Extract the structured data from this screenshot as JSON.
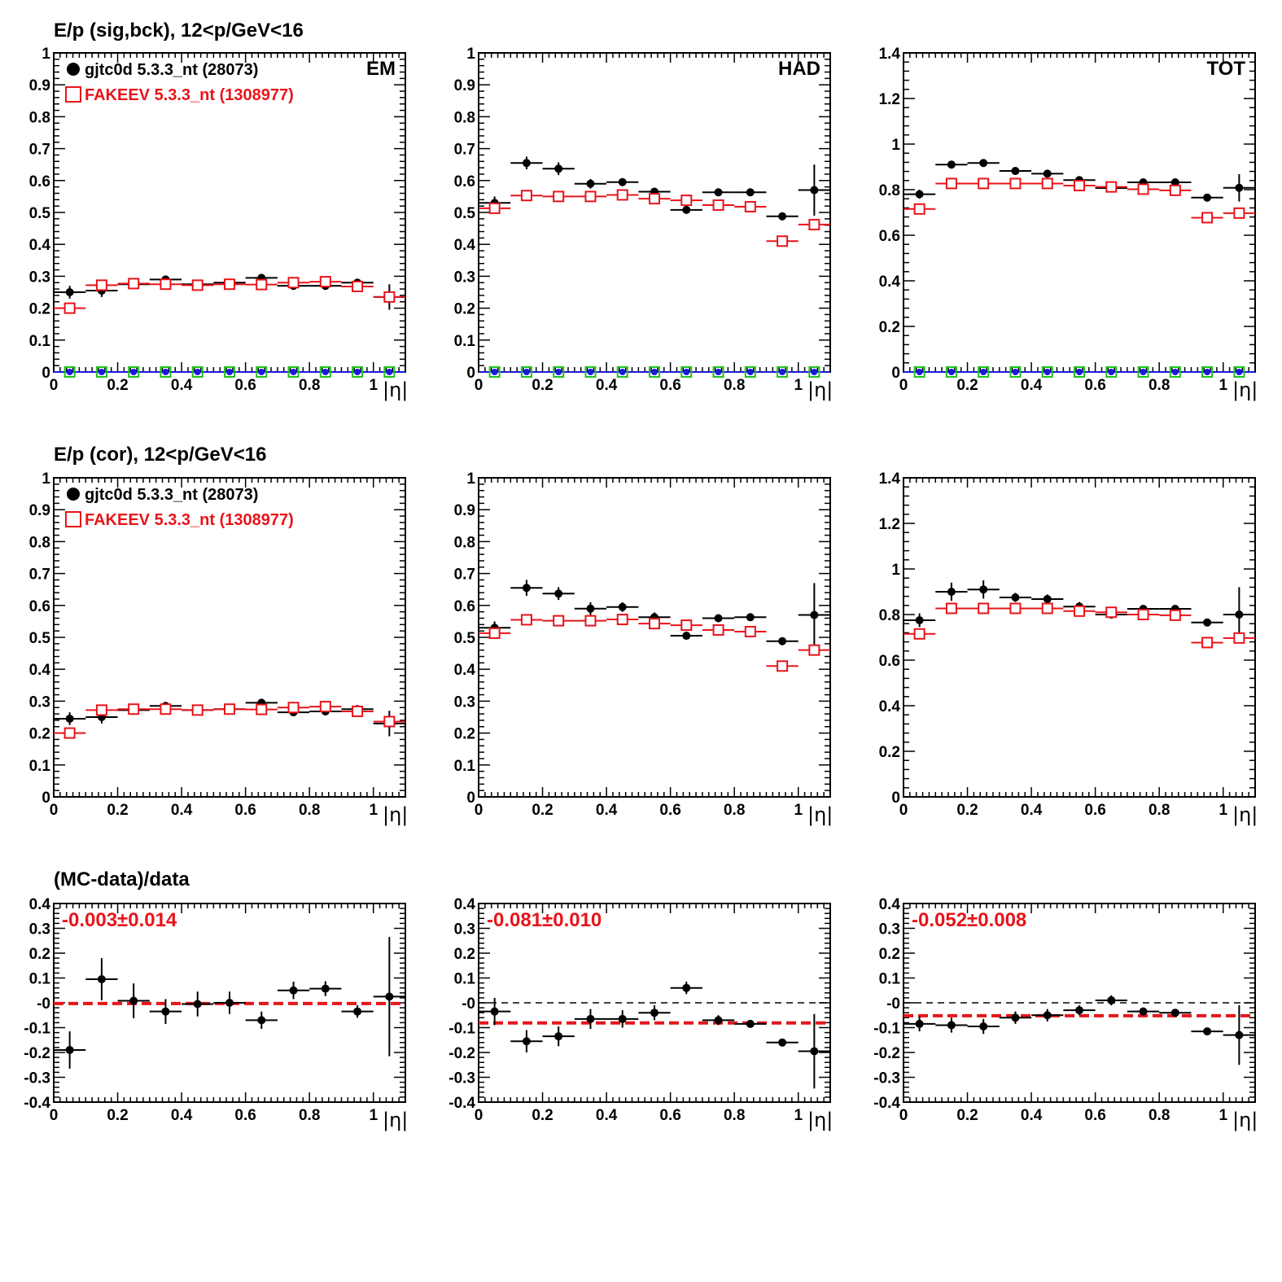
{
  "colors": {
    "data": "#000000",
    "mc": "#e8141a",
    "extra_fill": "#1a1adc",
    "extra_marker": "#20c020"
  },
  "figure": {
    "row_titles": [
      "E/p (sig,bck), 12<p/GeV<16",
      "E/p (cor), 12<p/GeV<16",
      "(MC-data)/data"
    ],
    "x_axis_label": "|η|",
    "legend": {
      "data_label": "gjtc0d 5.3.3_nt (28073)",
      "mc_label": "FAKEEV 5.3.3_nt (1308977)"
    },
    "column_labels": [
      "EM",
      "HAD",
      "TOT"
    ],
    "fit_results": [
      "-0.003±0.014",
      "-0.081±0.010",
      "-0.052±0.008"
    ]
  },
  "chart_data": [
    {
      "type": "scatter",
      "row": 0,
      "col": 0,
      "label": "EM",
      "xlim": [
        0,
        1.1
      ],
      "ylim": [
        0,
        1
      ],
      "xticks": [
        0,
        0.2,
        0.4,
        0.6,
        0.8,
        1
      ],
      "xtick_labels": [
        "0",
        "0.2",
        "0.4",
        "0.6",
        "0.8",
        "1"
      ],
      "yticks": [
        0,
        0.1,
        0.2,
        0.3,
        0.4,
        0.5,
        0.6,
        0.7,
        0.8,
        0.9,
        1
      ],
      "ytick_labels": [
        "0",
        "0.1",
        "0.2",
        "0.3",
        "0.4",
        "0.5",
        "0.6",
        "0.7",
        "0.8",
        "0.9",
        "1"
      ],
      "x": [
        0.05,
        0.15,
        0.25,
        0.35,
        0.45,
        0.55,
        0.65,
        0.75,
        0.85,
        0.95,
        1.05
      ],
      "series": [
        {
          "role": "data",
          "values": [
            0.25,
            0.255,
            0.275,
            0.29,
            0.275,
            0.28,
            0.295,
            0.27,
            0.27,
            0.28,
            0.235
          ],
          "errors": [
            0.02,
            0.02,
            0.015,
            0.01,
            0.01,
            0.01,
            0.01,
            0.01,
            0.01,
            0.01,
            0.04
          ]
        },
        {
          "role": "mc",
          "values": [
            0.2,
            0.272,
            0.277,
            0.275,
            0.272,
            0.275,
            0.274,
            0.28,
            0.283,
            0.268,
            0.235
          ],
          "errors": [
            0,
            0,
            0,
            0,
            0,
            0,
            0,
            0,
            0,
            0,
            0
          ]
        },
        {
          "role": "extra",
          "values": [
            0,
            0,
            0,
            0,
            0,
            0,
            0,
            0,
            0,
            0,
            0
          ],
          "errors": [
            0,
            0,
            0,
            0,
            0,
            0,
            0,
            0,
            0,
            0,
            0
          ]
        }
      ]
    },
    {
      "type": "scatter",
      "row": 0,
      "col": 1,
      "label": "HAD",
      "xlim": [
        0,
        1.1
      ],
      "ylim": [
        0,
        1
      ],
      "xticks": [
        0,
        0.2,
        0.4,
        0.6,
        0.8,
        1
      ],
      "xtick_labels": [
        "0",
        "0.2",
        "0.4",
        "0.6",
        "0.8",
        "1"
      ],
      "yticks": [
        0,
        0.1,
        0.2,
        0.3,
        0.4,
        0.5,
        0.6,
        0.7,
        0.8,
        0.9,
        1
      ],
      "ytick_labels": [
        "0",
        "0.1",
        "0.2",
        "0.3",
        "0.4",
        "0.5",
        "0.6",
        "0.7",
        "0.8",
        "0.9",
        "1"
      ],
      "x": [
        0.05,
        0.15,
        0.25,
        0.35,
        0.45,
        0.55,
        0.65,
        0.75,
        0.85,
        0.95,
        1.05
      ],
      "series": [
        {
          "role": "data",
          "values": [
            0.53,
            0.655,
            0.637,
            0.59,
            0.595,
            0.565,
            0.508,
            0.563,
            0.563,
            0.488,
            0.57
          ],
          "errors": [
            0.02,
            0.02,
            0.02,
            0.015,
            0.01,
            0.01,
            0.01,
            0.01,
            0.005,
            0.005,
            0.08
          ]
        },
        {
          "role": "mc",
          "values": [
            0.513,
            0.553,
            0.55,
            0.55,
            0.555,
            0.543,
            0.538,
            0.523,
            0.518,
            0.41,
            0.462
          ],
          "errors": [
            0,
            0,
            0,
            0,
            0,
            0,
            0,
            0,
            0,
            0,
            0
          ]
        },
        {
          "role": "extra",
          "values": [
            0,
            0,
            0,
            0,
            0,
            0,
            0,
            0,
            0,
            0,
            0
          ],
          "errors": [
            0,
            0,
            0,
            0,
            0,
            0,
            0,
            0,
            0,
            0,
            0
          ]
        }
      ]
    },
    {
      "type": "scatter",
      "row": 0,
      "col": 2,
      "label": "TOT",
      "xlim": [
        0,
        1.1
      ],
      "ylim": [
        0,
        1.4
      ],
      "xticks": [
        0,
        0.2,
        0.4,
        0.6,
        0.8,
        1
      ],
      "xtick_labels": [
        "0",
        "0.2",
        "0.4",
        "0.6",
        "0.8",
        "1"
      ],
      "yticks": [
        0,
        0.2,
        0.4,
        0.6,
        0.8,
        1,
        1.2,
        1.4
      ],
      "ytick_labels": [
        "0",
        "0.2",
        "0.4",
        "0.6",
        "0.8",
        "1",
        "1.2",
        "1.4"
      ],
      "x": [
        0.05,
        0.15,
        0.25,
        0.35,
        0.45,
        0.55,
        0.65,
        0.75,
        0.85,
        0.95,
        1.05
      ],
      "series": [
        {
          "role": "data",
          "values": [
            0.78,
            0.91,
            0.917,
            0.882,
            0.87,
            0.842,
            0.807,
            0.832,
            0.832,
            0.765,
            0.808
          ],
          "errors": [
            0.02,
            0.015,
            0.01,
            0.01,
            0.01,
            0.01,
            0.01,
            0.01,
            0.01,
            0.01,
            0.06
          ]
        },
        {
          "role": "mc",
          "values": [
            0.715,
            0.827,
            0.827,
            0.827,
            0.827,
            0.818,
            0.812,
            0.802,
            0.797,
            0.677,
            0.697
          ],
          "errors": [
            0,
            0,
            0,
            0,
            0,
            0,
            0,
            0,
            0,
            0,
            0
          ]
        },
        {
          "role": "extra",
          "values": [
            0,
            0,
            0,
            0,
            0,
            0,
            0,
            0,
            0,
            0,
            0
          ],
          "errors": [
            0,
            0,
            0,
            0,
            0,
            0,
            0,
            0,
            0,
            0,
            0
          ]
        }
      ]
    },
    {
      "type": "scatter",
      "row": 1,
      "col": 0,
      "xlim": [
        0,
        1.1
      ],
      "ylim": [
        0,
        1
      ],
      "xticks": [
        0,
        0.2,
        0.4,
        0.6,
        0.8,
        1
      ],
      "xtick_labels": [
        "0",
        "0.2",
        "0.4",
        "0.6",
        "0.8",
        "1"
      ],
      "yticks": [
        0,
        0.1,
        0.2,
        0.3,
        0.4,
        0.5,
        0.6,
        0.7,
        0.8,
        0.9,
        1
      ],
      "ytick_labels": [
        "0",
        "0.1",
        "0.2",
        "0.3",
        "0.4",
        "0.5",
        "0.6",
        "0.7",
        "0.8",
        "0.9",
        "1"
      ],
      "x": [
        0.05,
        0.15,
        0.25,
        0.35,
        0.45,
        0.55,
        0.65,
        0.75,
        0.85,
        0.95,
        1.05
      ],
      "series": [
        {
          "role": "data",
          "values": [
            0.245,
            0.25,
            0.272,
            0.285,
            0.272,
            0.275,
            0.295,
            0.265,
            0.268,
            0.275,
            0.23
          ],
          "errors": [
            0.02,
            0.02,
            0.015,
            0.01,
            0.01,
            0.01,
            0.01,
            0.01,
            0.01,
            0.01,
            0.04
          ]
        },
        {
          "role": "mc",
          "values": [
            0.2,
            0.272,
            0.275,
            0.275,
            0.272,
            0.275,
            0.274,
            0.28,
            0.283,
            0.268,
            0.236
          ],
          "errors": [
            0,
            0,
            0,
            0,
            0,
            0,
            0,
            0,
            0,
            0,
            0
          ]
        }
      ]
    },
    {
      "type": "scatter",
      "row": 1,
      "col": 1,
      "xlim": [
        0,
        1.1
      ],
      "ylim": [
        0,
        1
      ],
      "xticks": [
        0,
        0.2,
        0.4,
        0.6,
        0.8,
        1
      ],
      "xtick_labels": [
        "0",
        "0.2",
        "0.4",
        "0.6",
        "0.8",
        "1"
      ],
      "yticks": [
        0,
        0.1,
        0.2,
        0.3,
        0.4,
        0.5,
        0.6,
        0.7,
        0.8,
        0.9,
        1
      ],
      "ytick_labels": [
        "0",
        "0.1",
        "0.2",
        "0.3",
        "0.4",
        "0.5",
        "0.6",
        "0.7",
        "0.8",
        "0.9",
        "1"
      ],
      "x": [
        0.05,
        0.15,
        0.25,
        0.35,
        0.45,
        0.55,
        0.65,
        0.75,
        0.85,
        0.95,
        1.05
      ],
      "series": [
        {
          "role": "data",
          "values": [
            0.53,
            0.655,
            0.637,
            0.59,
            0.595,
            0.563,
            0.505,
            0.56,
            0.563,
            0.488,
            0.57
          ],
          "errors": [
            0.02,
            0.025,
            0.02,
            0.02,
            0.015,
            0.015,
            0.01,
            0.01,
            0.005,
            0.005,
            0.1
          ]
        },
        {
          "role": "mc",
          "values": [
            0.513,
            0.555,
            0.552,
            0.552,
            0.556,
            0.543,
            0.538,
            0.523,
            0.518,
            0.41,
            0.46
          ],
          "errors": [
            0,
            0,
            0,
            0,
            0,
            0,
            0,
            0,
            0,
            0,
            0
          ]
        }
      ]
    },
    {
      "type": "scatter",
      "row": 1,
      "col": 2,
      "xlim": [
        0,
        1.1
      ],
      "ylim": [
        0,
        1.4
      ],
      "xticks": [
        0,
        0.2,
        0.4,
        0.6,
        0.8,
        1
      ],
      "xtick_labels": [
        "0",
        "0.2",
        "0.4",
        "0.6",
        "0.8",
        "1"
      ],
      "yticks": [
        0,
        0.2,
        0.4,
        0.6,
        0.8,
        1,
        1.2,
        1.4
      ],
      "ytick_labels": [
        "0",
        "0.2",
        "0.4",
        "0.6",
        "0.8",
        "1",
        "1.2",
        "1.4"
      ],
      "x": [
        0.05,
        0.15,
        0.25,
        0.35,
        0.45,
        0.55,
        0.65,
        0.75,
        0.85,
        0.95,
        1.05
      ],
      "series": [
        {
          "role": "data",
          "values": [
            0.775,
            0.9,
            0.91,
            0.875,
            0.868,
            0.835,
            0.8,
            0.825,
            0.825,
            0.765,
            0.8
          ],
          "errors": [
            0.03,
            0.04,
            0.04,
            0.02,
            0.02,
            0.02,
            0.01,
            0.01,
            0.01,
            0.01,
            0.12
          ]
        },
        {
          "role": "mc",
          "values": [
            0.715,
            0.827,
            0.827,
            0.827,
            0.827,
            0.815,
            0.81,
            0.8,
            0.797,
            0.677,
            0.697
          ],
          "errors": [
            0,
            0,
            0,
            0,
            0,
            0,
            0,
            0,
            0,
            0,
            0
          ]
        }
      ]
    },
    {
      "type": "scatter",
      "row": 2,
      "col": 0,
      "xlim": [
        0,
        1.1
      ],
      "ylim": [
        -0.4,
        0.4
      ],
      "xticks": [
        0,
        0.2,
        0.4,
        0.6,
        0.8,
        1
      ],
      "xtick_labels": [
        "0",
        "0.2",
        "0.4",
        "0.6",
        "0.8",
        "1"
      ],
      "yticks": [
        -0.4,
        -0.3,
        -0.2,
        -0.1,
        0,
        0.1,
        0.2,
        0.3,
        0.4
      ],
      "ytick_labels": [
        "-0.4",
        "-0.3",
        "-0.2",
        "-0.1",
        "-0",
        "0.1",
        "0.2",
        "0.3",
        "0.4"
      ],
      "x": [
        0.05,
        0.15,
        0.25,
        0.35,
        0.45,
        0.55,
        0.65,
        0.75,
        0.85,
        0.95,
        1.05
      ],
      "series": [
        {
          "role": "data",
          "values": [
            -0.19,
            0.095,
            0.008,
            -0.035,
            -0.005,
            0.0,
            -0.07,
            0.05,
            0.057,
            -0.035,
            0.025
          ],
          "errors": [
            0.075,
            0.085,
            0.07,
            0.05,
            0.05,
            0.045,
            0.035,
            0.035,
            0.03,
            0.025,
            0.24
          ]
        }
      ],
      "fit": {
        "value": -0.003,
        "error": 0.014
      },
      "reference": 0
    },
    {
      "type": "scatter",
      "row": 2,
      "col": 1,
      "xlim": [
        0,
        1.1
      ],
      "ylim": [
        -0.4,
        0.4
      ],
      "xticks": [
        0,
        0.2,
        0.4,
        0.6,
        0.8,
        1
      ],
      "xtick_labels": [
        "0",
        "0.2",
        "0.4",
        "0.6",
        "0.8",
        "1"
      ],
      "yticks": [
        -0.4,
        -0.3,
        -0.2,
        -0.1,
        0,
        0.1,
        0.2,
        0.3,
        0.4
      ],
      "ytick_labels": [
        "-0.4",
        "-0.3",
        "-0.2",
        "-0.1",
        "-0",
        "0.1",
        "0.2",
        "0.3",
        "0.4"
      ],
      "x": [
        0.05,
        0.15,
        0.25,
        0.35,
        0.45,
        0.55,
        0.65,
        0.75,
        0.85,
        0.95,
        1.05
      ],
      "series": [
        {
          "role": "data",
          "values": [
            -0.035,
            -0.155,
            -0.135,
            -0.065,
            -0.065,
            -0.04,
            0.06,
            -0.07,
            -0.085,
            -0.16,
            -0.195
          ],
          "errors": [
            0.055,
            0.045,
            0.04,
            0.04,
            0.035,
            0.03,
            0.025,
            0.02,
            0.015,
            0.015,
            0.15
          ]
        }
      ],
      "fit": {
        "value": -0.081,
        "error": 0.01
      },
      "reference": 0
    },
    {
      "type": "scatter",
      "row": 2,
      "col": 2,
      "xlim": [
        0,
        1.1
      ],
      "ylim": [
        -0.4,
        0.4
      ],
      "xticks": [
        0,
        0.2,
        0.4,
        0.6,
        0.8,
        1
      ],
      "xtick_labels": [
        "0",
        "0.2",
        "0.4",
        "0.6",
        "0.8",
        "1"
      ],
      "yticks": [
        -0.4,
        -0.3,
        -0.2,
        -0.1,
        0,
        0.1,
        0.2,
        0.3,
        0.4
      ],
      "ytick_labels": [
        "-0.4",
        "-0.3",
        "-0.2",
        "-0.1",
        "-0",
        "0.1",
        "0.2",
        "0.3",
        "0.4"
      ],
      "x": [
        0.05,
        0.15,
        0.25,
        0.35,
        0.45,
        0.55,
        0.65,
        0.75,
        0.85,
        0.95,
        1.05
      ],
      "series": [
        {
          "role": "data",
          "values": [
            -0.085,
            -0.09,
            -0.095,
            -0.06,
            -0.05,
            -0.03,
            0.01,
            -0.035,
            -0.04,
            -0.115,
            -0.13
          ],
          "errors": [
            0.03,
            0.03,
            0.03,
            0.025,
            0.025,
            0.02,
            0.02,
            0.015,
            0.01,
            0.01,
            0.12
          ]
        }
      ],
      "fit": {
        "value": -0.052,
        "error": 0.008
      },
      "reference": 0
    }
  ]
}
